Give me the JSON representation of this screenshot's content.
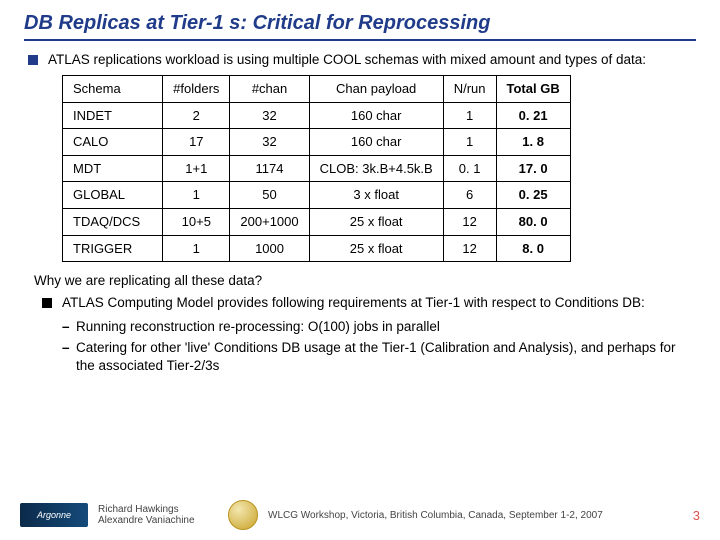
{
  "title": "DB Replicas at Tier-1 s: Critical for Reprocessing",
  "intro": "ATLAS replications workload is using multiple COOL schemas with mixed amount and types of data:",
  "table": {
    "columns": [
      "Schema",
      "#folders",
      "#chan",
      "Chan payload",
      "N/run",
      "Total GB"
    ],
    "rows": [
      [
        "INDET",
        "2",
        "32",
        "160 char",
        "1",
        "0. 21"
      ],
      [
        "CALO",
        "17",
        "32",
        "160 char",
        "1",
        "1. 8"
      ],
      [
        "MDT",
        "1+1",
        "1174",
        "CLOB: 3k.B+4.5k.B",
        "0. 1",
        "17. 0"
      ],
      [
        "GLOBAL",
        "1",
        "50",
        "3 x float",
        "6",
        "0. 25"
      ],
      [
        "TDAQ/DCS",
        "10+5",
        "200+1000",
        "25 x float",
        "12",
        "80. 0"
      ],
      [
        "TRIGGER",
        "1",
        "1000",
        "25 x float",
        "12",
        "8. 0"
      ]
    ]
  },
  "why": "Why we are replicating all these data?",
  "req_intro": "ATLAS Computing Model provides following requirements at Tier-1 with respect to Conditions DB:",
  "req1": "Running reconstruction re-processing: O(100) jobs in parallel",
  "req2": "Catering for other 'live' Conditions DB usage at the Tier-1 (Calibration and Analysis), and perhaps for the associated Tier-2/3s",
  "footer": {
    "logo": "Argonne",
    "author1": "Richard Hawkings",
    "author2": "Alexandre Vaniachine",
    "conf": "WLCG Workshop, Victoria, British Columbia, Canada, September 1-2, 2007",
    "page": "3"
  }
}
